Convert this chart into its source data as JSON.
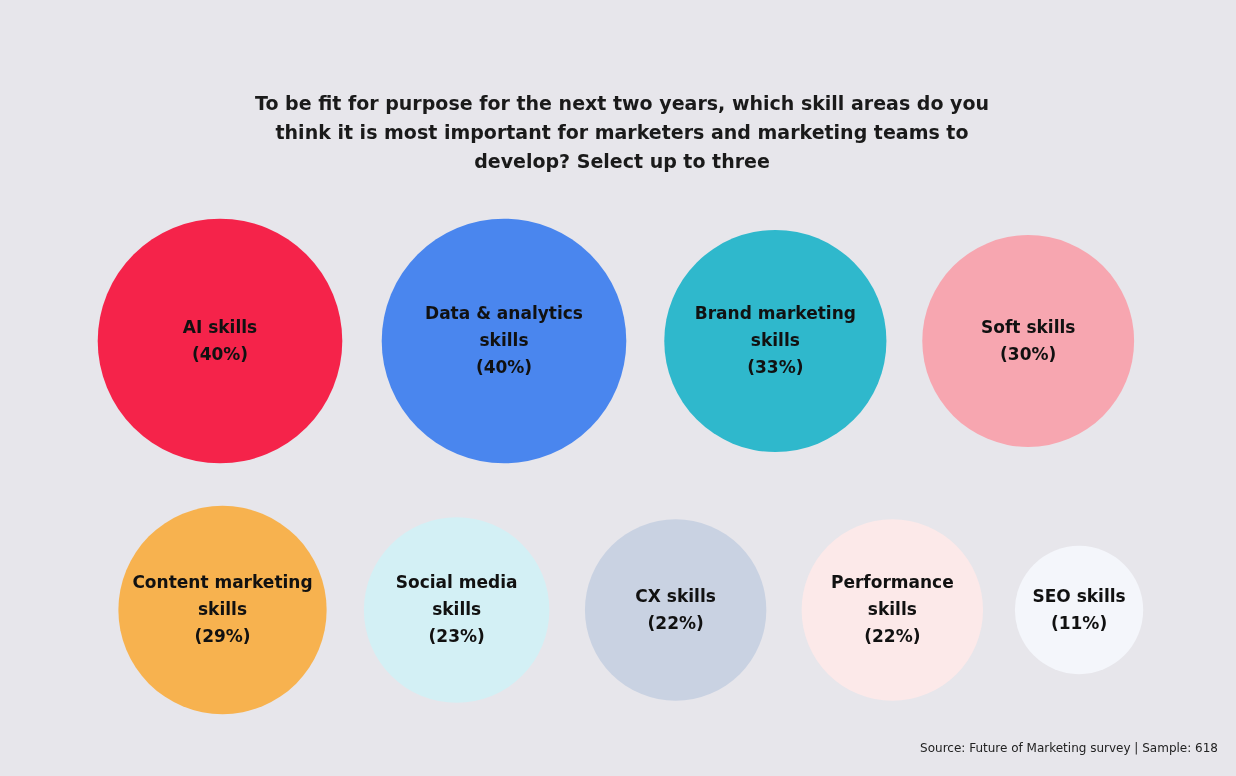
{
  "chart_data": {
    "type": "other",
    "title": "To be fit for purpose for the next two years, which skill areas do you think it is most important for marketers and marketing teams to develop? Select up to three",
    "categories": [
      "AI skills",
      "Data & analytics skills",
      "Brand marketing skills",
      "Soft skills",
      "Content marketing skills",
      "Social media skills",
      "CX skills",
      "Performance skills",
      "SEO skills"
    ],
    "values": [
      40,
      40,
      33,
      30,
      29,
      23,
      22,
      22,
      11
    ],
    "value_labels": [
      "(40%)",
      "(40%)",
      "(33%)",
      "(30%)",
      "(29%)",
      "(23%)",
      "(22%)",
      "(22%)",
      "(11%)"
    ],
    "colors": [
      "#f5234a",
      "#4a86ee",
      "#2fb8cc",
      "#f7a6b0",
      "#f7b24f",
      "#d3f0f5",
      "#c9d2e2",
      "#fce9e9",
      "#f4f6fb"
    ],
    "annotations": [
      "Source: Future of Marketing survey | Sample: 618"
    ]
  }
}
